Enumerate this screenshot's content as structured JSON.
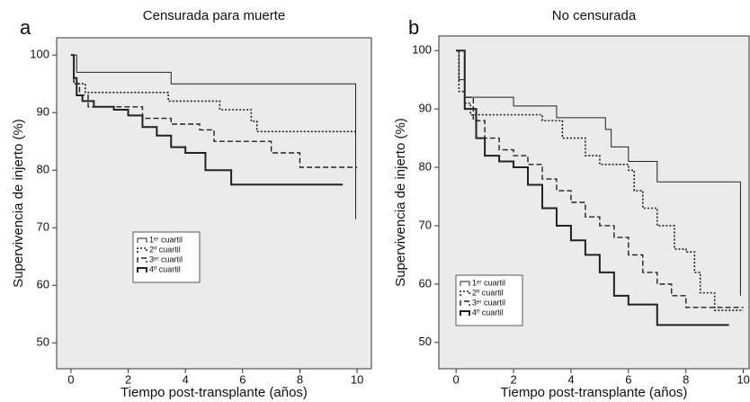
{
  "chart_data": [
    {
      "type": "line",
      "step": true,
      "label": "a",
      "title": "Censurada para muerte",
      "x_label": "Tiempo post-transplante (años)",
      "y_label": "Supervivencia de injerto (%)",
      "xlim": [
        -0.5,
        10.5
      ],
      "ylim": [
        45.5,
        103
      ],
      "xticks": [
        0,
        2,
        4,
        6,
        8,
        10
      ],
      "yticks": [
        50,
        60,
        70,
        80,
        90,
        100
      ],
      "legend": "center left",
      "series": [
        {
          "name": "1ᵉʳ cuartil",
          "color": "#222222",
          "line_style": "solid",
          "line_width": 1,
          "x": [
            0,
            0.2,
            3.5,
            9.95,
            9.95
          ],
          "values": [
            100,
            97,
            95,
            95,
            71.5
          ]
        },
        {
          "name": "2º cuartil",
          "color": "#222222",
          "line_style": "dotted",
          "line_width": 1.6,
          "x": [
            0,
            0.1,
            0.5,
            3.4,
            5.2,
            6.3,
            6.5,
            10
          ],
          "values": [
            100,
            95,
            93.5,
            92,
            90.5,
            88.5,
            86.7,
            86.7
          ]
        },
        {
          "name": "3ᵉʳ cuartil",
          "color": "#222222",
          "line_style": "dashed",
          "line_width": 1.4,
          "x": [
            0,
            0.1,
            0.3,
            0.6,
            2.5,
            3.5,
            4.5,
            5,
            7,
            8,
            10
          ],
          "values": [
            100,
            95,
            93,
            91,
            89,
            88,
            87,
            85,
            83,
            80.5,
            80.5
          ]
        },
        {
          "name": "4º cuartil",
          "color": "#222222",
          "line_style": "solid",
          "line_width": 2,
          "x": [
            0,
            0.1,
            0.2,
            0.4,
            0.8,
            1.5,
            2,
            2.5,
            3,
            3.5,
            4,
            4.7,
            5.6,
            9.5
          ],
          "values": [
            100,
            96,
            93,
            92,
            91,
            90.5,
            89.5,
            87.5,
            86,
            84,
            83,
            80,
            77.5,
            77.5
          ]
        }
      ]
    },
    {
      "type": "line",
      "step": true,
      "label": "b",
      "title": "No censurada",
      "x_label": "Tiempo post-transplante (años)",
      "y_label": "Supervivencia de injerto (%)",
      "xlim": [
        -0.6,
        10.2
      ],
      "ylim": [
        45.5,
        102.5
      ],
      "xticks": [
        0,
        2,
        4,
        6,
        8,
        10
      ],
      "yticks": [
        50,
        60,
        70,
        80,
        90,
        100
      ],
      "legend": "lower left",
      "series": [
        {
          "name": "1ᵉʳ cuartil",
          "color": "#222222",
          "line_style": "solid",
          "line_width": 1,
          "x": [
            0,
            0.1,
            0.3,
            2,
            3.5,
            5.2,
            5.4,
            6,
            7,
            9.9,
            9.9
          ],
          "values": [
            100,
            95,
            92,
            90.5,
            88.5,
            86.5,
            83.5,
            81,
            77.5,
            77.5,
            58
          ]
        },
        {
          "name": "2º cuartil",
          "color": "#222222",
          "line_style": "dotted",
          "line_width": 1.6,
          "x": [
            0,
            0.1,
            0.3,
            0.5,
            3,
            3.7,
            4.5,
            5,
            6,
            6.2,
            6.5,
            7,
            7.6,
            8,
            8.3,
            8.5,
            9,
            10
          ],
          "values": [
            100,
            93,
            91,
            89,
            88,
            85,
            82,
            80.5,
            79.5,
            76,
            73,
            70,
            66,
            65.5,
            62,
            58.5,
            55.5,
            55.5
          ]
        },
        {
          "name": "3ᵉʳ cuartil",
          "color": "#222222",
          "line_style": "dashed",
          "line_width": 1.4,
          "x": [
            0,
            0.3,
            0.6,
            1,
            1.5,
            2,
            2.5,
            3,
            3.5,
            4,
            4.5,
            5,
            5.5,
            6,
            6.5,
            7,
            7.5,
            8,
            10
          ],
          "values": [
            100,
            92,
            88,
            85,
            83,
            82,
            80.5,
            78,
            76,
            74,
            71.5,
            70,
            68,
            65,
            62,
            60,
            58,
            56,
            56
          ]
        },
        {
          "name": "4º cuartil",
          "color": "#222222",
          "line_style": "solid",
          "line_width": 2,
          "x": [
            0,
            0.3,
            0.7,
            1,
            1.5,
            2,
            2.5,
            3,
            3.5,
            4,
            4.5,
            5,
            5.5,
            6,
            7,
            9.5
          ],
          "values": [
            100,
            90,
            85,
            82,
            81,
            80,
            77,
            73,
            70,
            67.5,
            65,
            62,
            58,
            56.5,
            53,
            53
          ]
        }
      ]
    }
  ]
}
